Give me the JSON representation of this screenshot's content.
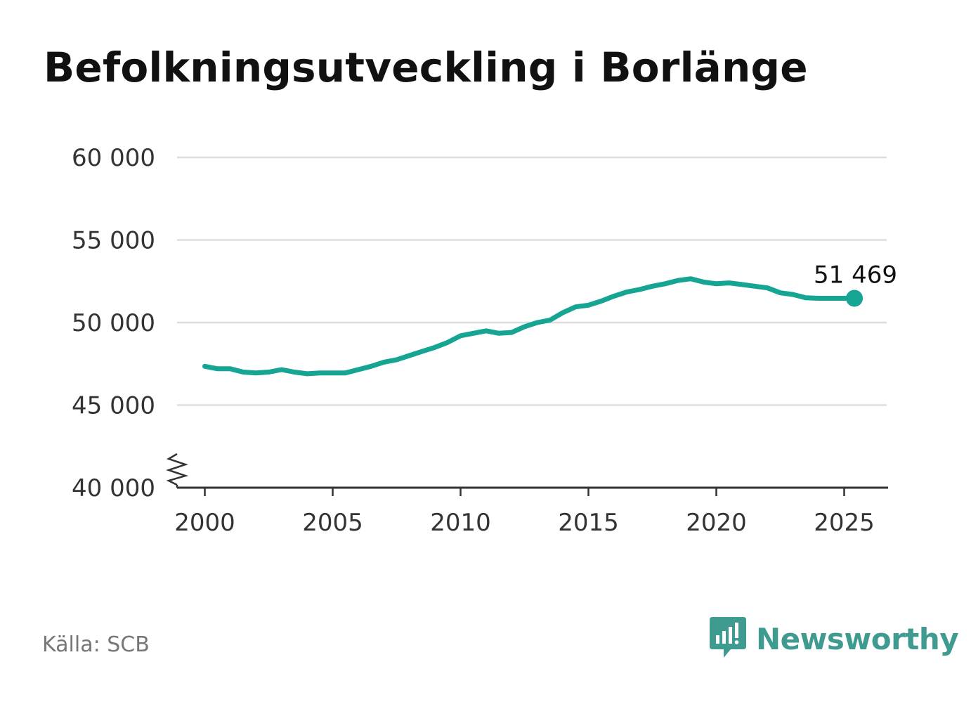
{
  "title": "Befolkningsutveckling i Borlänge",
  "source": "Källa: SCB",
  "brand": {
    "name": "Newsworthy",
    "icon": "newsworthy-logo-icon",
    "color": "#3f9b8f"
  },
  "colors": {
    "line": "#17a593",
    "grid": "#dddddd",
    "axis": "#333333"
  },
  "chart_data": {
    "type": "line",
    "title": "Befolkningsutveckling i Borlänge",
    "xlabel": "",
    "ylabel": "",
    "xlim": [
      1999,
      2026.8
    ],
    "ylim": [
      40000,
      60000
    ],
    "axis_break": true,
    "grid": true,
    "x_ticks": [
      2000,
      2005,
      2010,
      2015,
      2020,
      2025
    ],
    "x_tick_labels": [
      "2000",
      "2005",
      "2010",
      "2015",
      "2020",
      "2025"
    ],
    "y_ticks": [
      40000,
      45000,
      50000,
      55000,
      60000
    ],
    "y_tick_labels": [
      "40 000",
      "45 000",
      "50 000",
      "55 000",
      "60 000"
    ],
    "end_label": "51 469",
    "series": [
      {
        "x": [
          2000.0,
          2000.5,
          2001.0,
          2001.5,
          2002.0,
          2002.5,
          2003.0,
          2003.5,
          2004.0,
          2004.5,
          2005.0,
          2005.5,
          2006.0,
          2006.5,
          2007.0,
          2007.5,
          2008.0,
          2008.5,
          2009.0,
          2009.5,
          2010.0,
          2010.5,
          2011.0,
          2011.5,
          2012.0,
          2012.5,
          2013.0,
          2013.5,
          2014.0,
          2014.5,
          2015.0,
          2015.5,
          2016.0,
          2016.5,
          2017.0,
          2017.5,
          2018.0,
          2018.5,
          2019.0,
          2019.5,
          2020.0,
          2020.5,
          2021.0,
          2021.5,
          2022.0,
          2022.5,
          2023.0,
          2023.5,
          2024.0,
          2024.5,
          2025.0,
          2025.4
        ],
        "values": [
          47350,
          47200,
          47200,
          47000,
          46950,
          47000,
          47150,
          47000,
          46900,
          46950,
          46950,
          46950,
          47150,
          47350,
          47600,
          47750,
          48000,
          48250,
          48500,
          48800,
          49200,
          49350,
          49500,
          49350,
          49400,
          49750,
          50000,
          50150,
          50600,
          50950,
          51050,
          51300,
          51600,
          51850,
          52000,
          52200,
          52350,
          52550,
          52650,
          52450,
          52350,
          52400,
          52300,
          52200,
          52100,
          51800,
          51700,
          51500,
          51469,
          51469,
          51469,
          51469
        ]
      }
    ]
  }
}
